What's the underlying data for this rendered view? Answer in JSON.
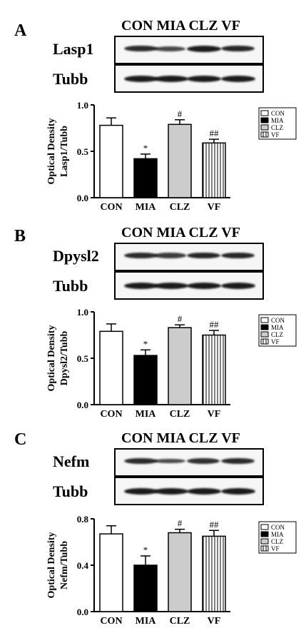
{
  "group_header": "CON MIA CLZ VF",
  "panels": [
    {
      "letter": "A",
      "protein_label": "Lasp1",
      "loading_label": "Tubb",
      "band_intensity": [
        0.85,
        0.6,
        1.0,
        0.9
      ],
      "loading_intensity": [
        1.0,
        1.0,
        1.0,
        1.0
      ]
    },
    {
      "letter": "B",
      "protein_label": "Dpysl2",
      "loading_label": "Tubb",
      "band_intensity": [
        0.85,
        0.7,
        0.9,
        0.9
      ],
      "loading_intensity": [
        1.0,
        1.0,
        1.0,
        1.0
      ]
    },
    {
      "letter": "C",
      "protein_label": "Nefm",
      "loading_label": "Tubb",
      "band_intensity": [
        0.85,
        0.55,
        0.8,
        0.85
      ],
      "loading_intensity": [
        1.0,
        1.0,
        1.0,
        1.0
      ]
    }
  ],
  "legend": {
    "entries": [
      "CON",
      "MIA",
      "CLZ",
      "VF"
    ]
  },
  "colors": {
    "CON": "#ffffff",
    "MIA": "#000000",
    "CLZ": "#cccccc",
    "VF": "hatched-vertical"
  },
  "chart_data": [
    {
      "type": "bar",
      "categories": [
        "CON",
        "MIA",
        "CLZ",
        "VF"
      ],
      "values": [
        0.78,
        0.42,
        0.79,
        0.59
      ],
      "errors": [
        0.08,
        0.05,
        0.05,
        0.04
      ],
      "annotations": [
        "",
        "*",
        "#",
        "##"
      ],
      "ylabel_line1": "Optical Density",
      "ylabel_line2": "Lasp1/Tubb",
      "ylim": [
        0.0,
        1.0
      ],
      "yticks": [
        "0.0",
        "0.5",
        "1.0"
      ],
      "legend": "right"
    },
    {
      "type": "bar",
      "categories": [
        "CON",
        "MIA",
        "CLZ",
        "VF"
      ],
      "values": [
        0.79,
        0.53,
        0.83,
        0.75
      ],
      "errors": [
        0.08,
        0.06,
        0.03,
        0.05
      ],
      "annotations": [
        "",
        "*",
        "#",
        "##"
      ],
      "ylabel_line1": "Optical Density",
      "ylabel_line2": "Dpysl2/Tubb",
      "ylim": [
        0.0,
        1.0
      ],
      "yticks": [
        "0.0",
        "0.5",
        "1.0"
      ],
      "legend": "right"
    },
    {
      "type": "bar",
      "categories": [
        "CON",
        "MIA",
        "CLZ",
        "VF"
      ],
      "values": [
        0.67,
        0.4,
        0.68,
        0.65
      ],
      "errors": [
        0.07,
        0.08,
        0.03,
        0.05
      ],
      "annotations": [
        "",
        "*",
        "#",
        "##"
      ],
      "ylabel_line1": "Optical Density",
      "ylabel_line2": "Nefm/Tubb",
      "ylim": [
        0.0,
        0.8
      ],
      "yticks": [
        "0.0",
        "0.4",
        "0.8"
      ],
      "legend": "right"
    }
  ]
}
